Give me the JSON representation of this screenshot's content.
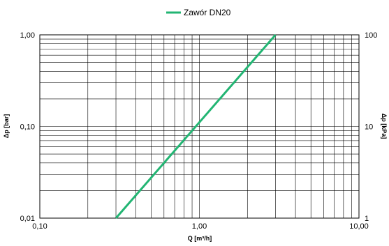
{
  "chart_data": {
    "type": "line",
    "x_scale": "log",
    "y_scale": "log",
    "y2_scale": "log",
    "xlim": [
      0.1,
      10
    ],
    "ylim": [
      0.01,
      1
    ],
    "y2lim": [
      1,
      100
    ],
    "grid": true,
    "legend_position": "top-center",
    "xlabel": "Q [m³/h]",
    "ylabel": "Δp [bar]",
    "y2label": "Δp [kPa]",
    "x_ticks": [
      {
        "value": 0.1,
        "label": "0,10"
      },
      {
        "value": 1,
        "label": "1,00"
      },
      {
        "value": 10,
        "label": "10,00"
      }
    ],
    "y_ticks": [
      {
        "value": 0.01,
        "label": "0,01"
      },
      {
        "value": 0.1,
        "label": "0,10"
      },
      {
        "value": 1,
        "label": "1,00"
      }
    ],
    "y2_ticks": [
      {
        "value": 1,
        "label": "1"
      },
      {
        "value": 10,
        "label": "10"
      },
      {
        "value": 100,
        "label": "100"
      }
    ],
    "series": [
      {
        "name": "Zawór DN20",
        "color": "#22b573",
        "x": [
          0.3,
          3.0
        ],
        "y": [
          0.01,
          1.0
        ]
      }
    ]
  }
}
